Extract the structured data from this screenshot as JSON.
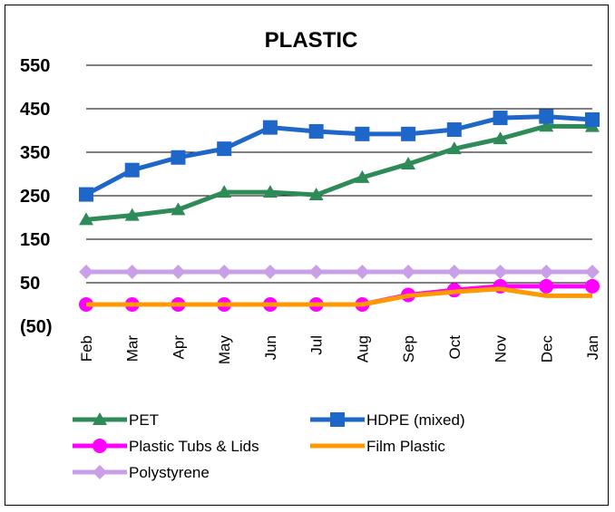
{
  "chart_data": {
    "type": "line",
    "title": "PLASTIC",
    "xlabel": "",
    "ylabel": "",
    "categories": [
      "Feb",
      "Mar",
      "Apr",
      "May",
      "Jun",
      "Jul",
      "Aug",
      "Sep",
      "Oct",
      "Nov",
      "Dec",
      "Jan"
    ],
    "y_tick_labels": [
      "(50)",
      "50",
      "150",
      "250",
      "350",
      "450",
      "550"
    ],
    "y_ticks": [
      -50,
      50,
      150,
      250,
      350,
      450,
      550
    ],
    "ylim": [
      -50,
      550
    ],
    "grid": true,
    "legend_position": "bottom",
    "series": [
      {
        "name": "PET",
        "color": "#2e8b57",
        "marker": "triangle",
        "values": [
          195,
          205,
          218,
          258,
          258,
          252,
          292,
          323,
          358,
          381,
          410,
          409
        ]
      },
      {
        "name": "HDPE (mixed)",
        "color": "#1f66c9",
        "marker": "square",
        "values": [
          253,
          309,
          338,
          358,
          407,
          398,
          392,
          392,
          402,
          429,
          432,
          425
        ]
      },
      {
        "name": "Plastic Tubs & Lids",
        "color": "#ff00ff",
        "marker": "circle",
        "values": [
          0,
          0,
          0,
          0,
          0,
          0,
          0,
          22,
          33,
          42,
          42,
          42
        ]
      },
      {
        "name": "Film Plastic",
        "color": "#ff9900",
        "marker": "none",
        "values": [
          0,
          0,
          0,
          0,
          0,
          0,
          0,
          20,
          29,
          36,
          20,
          20
        ]
      },
      {
        "name": "Polystyrene",
        "color": "#c9a0e8",
        "marker": "diamond",
        "values": [
          75,
          75,
          75,
          75,
          75,
          75,
          75,
          75,
          75,
          75,
          75,
          75
        ]
      }
    ]
  }
}
